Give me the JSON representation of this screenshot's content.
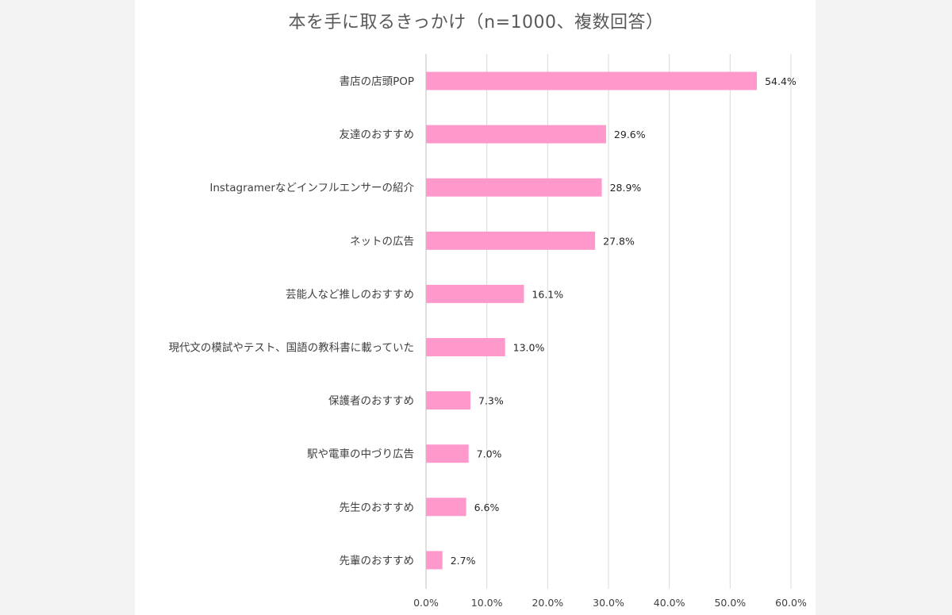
{
  "chart_data": {
    "type": "bar",
    "orientation": "horizontal",
    "title": "本を手に取るきっかけ（n=1000、複数回答）",
    "categories": [
      "書店の店頭POP",
      "友達のおすすめ",
      "Instagramerなどインフルエンサーの紹介",
      "ネットの広告",
      "芸能人など推しのおすすめ",
      "現代文の模試やテスト、国語の教科書に載っていた",
      "保護者のおすすめ",
      "駅や電車の中づり広告",
      "先生のおすすめ",
      "先輩のおすすめ"
    ],
    "values": [
      54.4,
      29.6,
      28.9,
      27.8,
      16.1,
      13.0,
      7.3,
      7.0,
      6.6,
      2.7
    ],
    "value_labels": [
      "54.4%",
      "29.6%",
      "28.9%",
      "27.8%",
      "16.1%",
      "13.0%",
      "7.3%",
      "7.0%",
      "6.6%",
      "2.7%"
    ],
    "xlim": [
      0,
      60
    ],
    "xticks": [
      0,
      10,
      20,
      30,
      40,
      50,
      60
    ],
    "xtick_labels": [
      "0.0%",
      "10.0%",
      "20.0%",
      "30.0%",
      "40.0%",
      "50.0%",
      "60.0%"
    ],
    "grid": true,
    "legend": "none",
    "bar_color": "#ff99cc",
    "grid_color": "#d9d9d9"
  }
}
